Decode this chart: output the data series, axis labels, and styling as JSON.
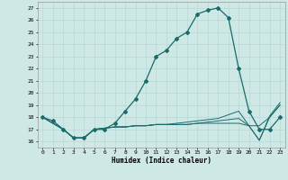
{
  "xlabel": "Humidex (Indice chaleur)",
  "xlim": [
    -0.5,
    23.5
  ],
  "ylim": [
    15.5,
    27.5
  ],
  "yticks": [
    16,
    17,
    18,
    19,
    20,
    21,
    22,
    23,
    24,
    25,
    26,
    27
  ],
  "xticks": [
    0,
    1,
    2,
    3,
    4,
    5,
    6,
    7,
    8,
    9,
    10,
    11,
    12,
    13,
    14,
    15,
    16,
    17,
    18,
    19,
    20,
    21,
    22,
    23
  ],
  "bg_color": "#cde8e5",
  "line_color": "#1a6b6b",
  "grid_color": "#b8d8d5",
  "lines": [
    [
      18.0,
      17.7,
      17.0,
      16.3,
      16.3,
      17.0,
      17.0,
      17.5,
      18.5,
      19.5,
      21.0,
      23.0,
      23.5,
      24.5,
      25.0,
      26.5,
      26.8,
      27.0,
      26.2,
      22.0,
      18.5,
      17.0,
      17.0,
      18.0
    ],
    [
      18.0,
      17.5,
      17.0,
      16.3,
      16.3,
      17.0,
      17.1,
      17.2,
      17.2,
      17.3,
      17.3,
      17.4,
      17.4,
      17.4,
      17.4,
      17.5,
      17.5,
      17.5,
      17.5,
      17.5,
      17.3,
      17.3,
      18.0,
      19.0
    ],
    [
      18.0,
      17.5,
      17.0,
      16.3,
      16.3,
      17.0,
      17.1,
      17.2,
      17.2,
      17.3,
      17.3,
      17.4,
      17.4,
      17.4,
      17.4,
      17.5,
      17.6,
      17.7,
      17.8,
      17.9,
      17.3,
      16.1,
      18.0,
      19.0
    ],
    [
      18.0,
      17.5,
      17.0,
      16.3,
      16.3,
      17.0,
      17.1,
      17.2,
      17.2,
      17.3,
      17.3,
      17.4,
      17.4,
      17.5,
      17.6,
      17.7,
      17.8,
      17.9,
      18.2,
      18.5,
      17.3,
      16.1,
      18.1,
      19.2
    ]
  ]
}
